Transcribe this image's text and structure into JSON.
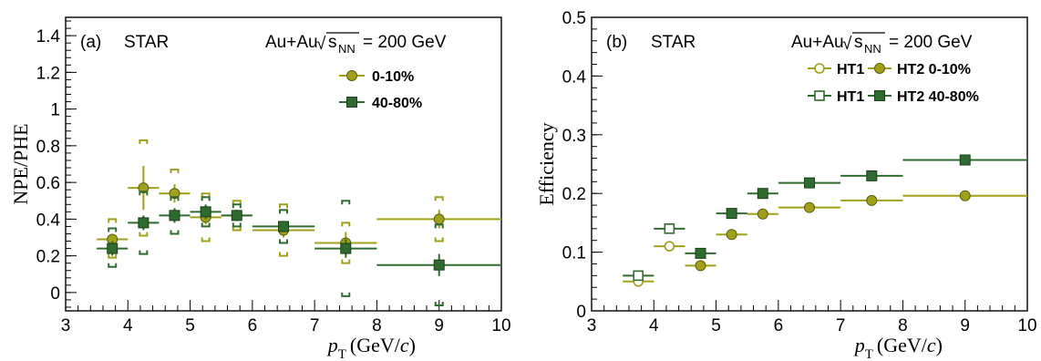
{
  "chart_data": [
    {
      "panel_label": "(a)",
      "experiment": "STAR",
      "system": {
        "prefix": "Au+Au",
        "root_symbol": "√",
        "sqrt_var": "s",
        "sqrt_sub": "NN",
        "suffix": "= 200 GeV"
      },
      "type": "scatter",
      "xlabel": {
        "var": "p",
        "sub": "T",
        "unit_pre": "(GeV/",
        "unit_var": "c",
        "unit_post": ")"
      },
      "ylabel": "NPE/PHE",
      "xlim": [
        3,
        10
      ],
      "ylim": [
        -0.1,
        1.5
      ],
      "xticks": [
        "3",
        "4",
        "5",
        "6",
        "7",
        "8",
        "9",
        "10"
      ],
      "yticks": [
        "0",
        "0.2",
        "0.4",
        "0.6",
        "0.8",
        "1",
        "1.2",
        "1.4"
      ],
      "legend": [
        "0-10%",
        "40-80%"
      ],
      "legend_position": "top-right",
      "series": [
        {
          "name": "0-10%",
          "color": "#a0a019",
          "marker": "circle",
          "points": [
            {
              "x": 3.75,
              "xlo": 3.5,
              "xhi": 4.0,
              "y": 0.29,
              "stat": 0.02,
              "syslo": 0.1,
              "syshi": 0.11
            },
            {
              "x": 4.25,
              "xlo": 4.0,
              "xhi": 4.5,
              "y": 0.57,
              "stat": 0.12,
              "syslo": 0.26,
              "syshi": 0.26
            },
            {
              "x": 4.75,
              "xlo": 4.5,
              "xhi": 5.0,
              "y": 0.54,
              "stat": 0.05,
              "syslo": 0.13,
              "syshi": 0.13
            },
            {
              "x": 5.25,
              "xlo": 5.0,
              "xhi": 5.5,
              "y": 0.41,
              "stat": 0.04,
              "syslo": 0.13,
              "syshi": 0.13
            },
            {
              "x": 5.75,
              "xlo": 5.5,
              "xhi": 6.0,
              "y": 0.42,
              "stat": 0.03,
              "syslo": 0.08,
              "syshi": 0.08
            },
            {
              "x": 6.5,
              "xlo": 6.0,
              "xhi": 7.0,
              "y": 0.34,
              "stat": 0.04,
              "syslo": 0.14,
              "syshi": 0.14
            },
            {
              "x": 7.5,
              "xlo": 7.0,
              "xhi": 8.0,
              "y": 0.27,
              "stat": 0.06,
              "syslo": 0.11,
              "syshi": 0.11
            },
            {
              "x": 9.0,
              "xlo": 8.0,
              "xhi": 10.0,
              "y": 0.4,
              "stat": 0.05,
              "syslo": 0.12,
              "syshi": 0.12
            }
          ]
        },
        {
          "name": "40-80%",
          "color": "#2e6b2e",
          "marker": "square",
          "points": [
            {
              "x": 3.75,
              "xlo": 3.5,
              "xhi": 4.0,
              "y": 0.24,
              "stat": 0.04,
              "syslo": 0.1,
              "syshi": 0.11
            },
            {
              "x": 4.25,
              "xlo": 4.0,
              "xhi": 4.5,
              "y": 0.38,
              "stat": 0.04,
              "syslo": 0.17,
              "syshi": 0.17
            },
            {
              "x": 4.75,
              "xlo": 4.5,
              "xhi": 5.0,
              "y": 0.42,
              "stat": 0.04,
              "syslo": 0.1,
              "syshi": 0.1
            },
            {
              "x": 5.25,
              "xlo": 5.0,
              "xhi": 5.5,
              "y": 0.44,
              "stat": 0.04,
              "syslo": 0.08,
              "syshi": 0.08
            },
            {
              "x": 5.75,
              "xlo": 5.5,
              "xhi": 6.0,
              "y": 0.42,
              "stat": 0.03,
              "syslo": 0.06,
              "syshi": 0.06
            },
            {
              "x": 6.5,
              "xlo": 6.0,
              "xhi": 7.0,
              "y": 0.36,
              "stat": 0.03,
              "syslo": 0.09,
              "syshi": 0.09
            },
            {
              "x": 7.5,
              "xlo": 7.0,
              "xhi": 8.0,
              "y": 0.24,
              "stat": 0.05,
              "syslo": 0.26,
              "syshi": 0.26
            },
            {
              "x": 9.0,
              "xlo": 8.0,
              "xhi": 10.0,
              "y": 0.15,
              "stat": 0.06,
              "syslo": 0.22,
              "syshi": 0.22
            }
          ]
        }
      ]
    },
    {
      "panel_label": "(b)",
      "experiment": "STAR",
      "system": {
        "prefix": "Au+Au",
        "root_symbol": "√",
        "sqrt_var": "s",
        "sqrt_sub": "NN",
        "suffix": "= 200 GeV"
      },
      "type": "scatter",
      "xlabel": {
        "var": "p",
        "sub": "T",
        "unit_pre": "(GeV/",
        "unit_var": "c",
        "unit_post": ")"
      },
      "ylabel": "Efficiency",
      "xlim": [
        3,
        10
      ],
      "ylim": [
        0,
        0.5
      ],
      "xticks": [
        "3",
        "4",
        "5",
        "6",
        "7",
        "8",
        "9",
        "10"
      ],
      "yticks": [
        "0",
        "0.1",
        "0.2",
        "0.3",
        "0.4",
        "0.5"
      ],
      "legend": [
        "HT1",
        "HT2 0-10%",
        "HT1",
        "HT2 40-80%"
      ],
      "legend_position": "top-right",
      "series": [
        {
          "name": "HT1",
          "group": "0-10%",
          "color": "#a0a019",
          "marker": "circle-open",
          "points": [
            {
              "x": 3.75,
              "xlo": 3.5,
              "xhi": 4.0,
              "y": 0.05
            },
            {
              "x": 4.25,
              "xlo": 4.0,
              "xhi": 4.5,
              "y": 0.11
            }
          ]
        },
        {
          "name": "HT2 0-10%",
          "group": "0-10%",
          "color": "#a0a019",
          "marker": "circle",
          "points": [
            {
              "x": 4.75,
              "xlo": 4.5,
              "xhi": 5.0,
              "y": 0.077
            },
            {
              "x": 5.25,
              "xlo": 5.0,
              "xhi": 5.5,
              "y": 0.13
            },
            {
              "x": 5.75,
              "xlo": 5.5,
              "xhi": 6.0,
              "y": 0.165
            },
            {
              "x": 6.5,
              "xlo": 6.0,
              "xhi": 7.0,
              "y": 0.176
            },
            {
              "x": 7.5,
              "xlo": 7.0,
              "xhi": 8.0,
              "y": 0.188
            },
            {
              "x": 9.0,
              "xlo": 8.0,
              "xhi": 10.0,
              "y": 0.196
            }
          ]
        },
        {
          "name": "HT1",
          "group": "40-80%",
          "color": "#2e6b2e",
          "marker": "square-open",
          "points": [
            {
              "x": 3.75,
              "xlo": 3.5,
              "xhi": 4.0,
              "y": 0.06
            },
            {
              "x": 4.25,
              "xlo": 4.0,
              "xhi": 4.5,
              "y": 0.14
            }
          ]
        },
        {
          "name": "HT2 40-80%",
          "group": "40-80%",
          "color": "#2e6b2e",
          "marker": "square",
          "points": [
            {
              "x": 4.75,
              "xlo": 4.5,
              "xhi": 5.0,
              "y": 0.098
            },
            {
              "x": 5.25,
              "xlo": 5.0,
              "xhi": 5.5,
              "y": 0.166
            },
            {
              "x": 5.75,
              "xlo": 5.5,
              "xhi": 6.0,
              "y": 0.2
            },
            {
              "x": 6.5,
              "xlo": 6.0,
              "xhi": 7.0,
              "y": 0.218
            },
            {
              "x": 7.5,
              "xlo": 7.0,
              "xhi": 8.0,
              "y": 0.23
            },
            {
              "x": 9.0,
              "xlo": 8.0,
              "xhi": 10.0,
              "y": 0.257
            }
          ]
        }
      ]
    }
  ]
}
